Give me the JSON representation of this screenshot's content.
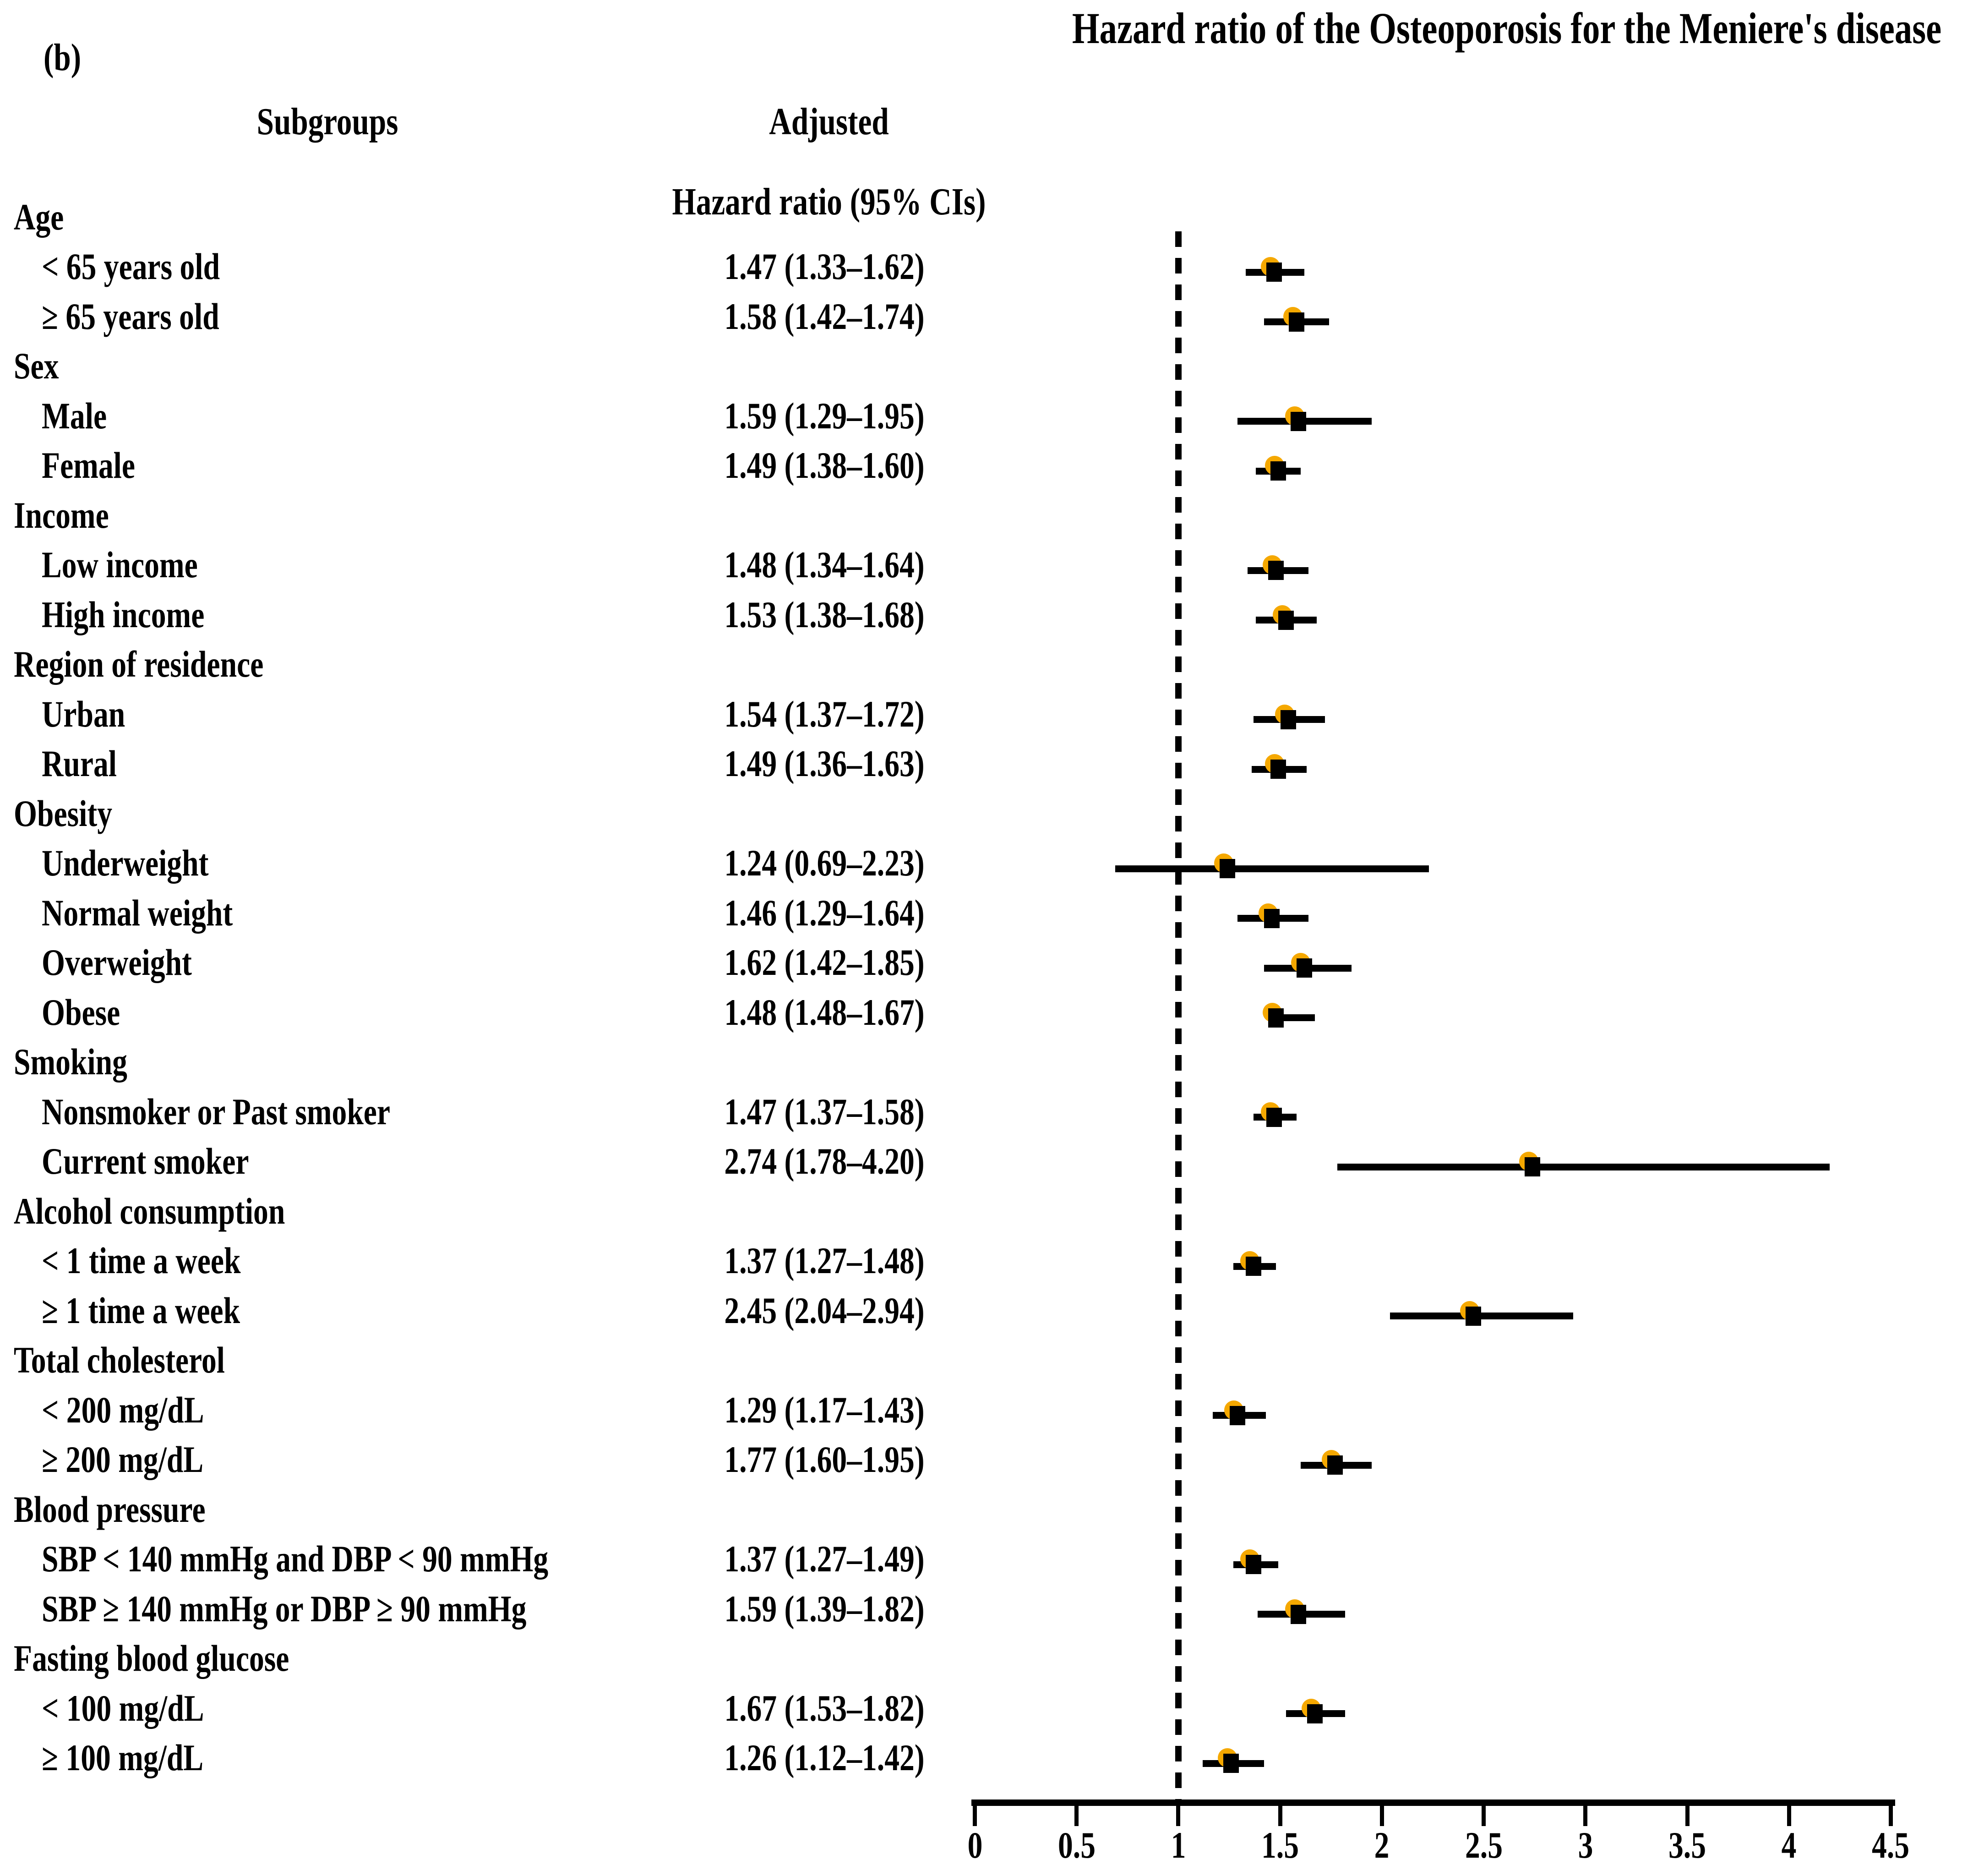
{
  "figure_label": "(b)",
  "title": "Hazard ratio of the Osteoporosis for the Meniere's disease",
  "columns": {
    "subgroups": "Subgroups",
    "adjusted_line1": "Adjusted",
    "adjusted_line2": "Hazard ratio (95% CIs)"
  },
  "colors": {
    "background": "#FFFFFF",
    "text": "#000000",
    "marker": "#000000",
    "ci_line": "#000000",
    "accent": "#F5A800"
  },
  "chart_data": {
    "type": "scatter",
    "variant": "forest-plot",
    "title": "Hazard ratio of the Osteoporosis for the Meniere's disease",
    "xlabel": "",
    "ylabel": "",
    "xlim": [
      0,
      4.5
    ],
    "x_ticks": [
      "0",
      "0.5",
      "1",
      "1.5",
      "2",
      "2.5",
      "3",
      "3.5",
      "4",
      "4.5"
    ],
    "reference_line_x": 1,
    "grid": false,
    "legend": "none",
    "rows": [
      {
        "type": "section",
        "label": "Age"
      },
      {
        "type": "item",
        "label": "< 65 years old",
        "value_text": "1.47 (1.33–1.62)",
        "hr": 1.47,
        "lo": 1.33,
        "hi": 1.62
      },
      {
        "type": "item",
        "label": "≥ 65 years old",
        "value_text": "1.58 (1.42–1.74)",
        "hr": 1.58,
        "lo": 1.42,
        "hi": 1.74
      },
      {
        "type": "section",
        "label": "Sex"
      },
      {
        "type": "item",
        "label": "Male",
        "value_text": "1.59 (1.29–1.95)",
        "hr": 1.59,
        "lo": 1.29,
        "hi": 1.95
      },
      {
        "type": "item",
        "label": "Female",
        "value_text": "1.49 (1.38–1.60)",
        "hr": 1.49,
        "lo": 1.38,
        "hi": 1.6
      },
      {
        "type": "section",
        "label": "Income"
      },
      {
        "type": "item",
        "label": "Low income",
        "value_text": "1.48 (1.34–1.64)",
        "hr": 1.48,
        "lo": 1.34,
        "hi": 1.64
      },
      {
        "type": "item",
        "label": "High income",
        "value_text": "1.53 (1.38–1.68)",
        "hr": 1.53,
        "lo": 1.38,
        "hi": 1.68
      },
      {
        "type": "section",
        "label": "Region of residence"
      },
      {
        "type": "item",
        "label": "Urban",
        "value_text": "1.54 (1.37–1.72)",
        "hr": 1.54,
        "lo": 1.37,
        "hi": 1.72
      },
      {
        "type": "item",
        "label": "Rural",
        "value_text": "1.49 (1.36–1.63)",
        "hr": 1.49,
        "lo": 1.36,
        "hi": 1.63
      },
      {
        "type": "section",
        "label": "Obesity"
      },
      {
        "type": "item",
        "label": "Underweight",
        "value_text": "1.24 (0.69–2.23)",
        "hr": 1.24,
        "lo": 0.69,
        "hi": 2.23
      },
      {
        "type": "item",
        "label": "Normal weight",
        "value_text": "1.46 (1.29–1.64)",
        "hr": 1.46,
        "lo": 1.29,
        "hi": 1.64
      },
      {
        "type": "item",
        "label": "Overweight",
        "value_text": "1.62 (1.42–1.85)",
        "hr": 1.62,
        "lo": 1.42,
        "hi": 1.85
      },
      {
        "type": "item",
        "label": "Obese",
        "value_text": "1.48 (1.48–1.67)",
        "hr": 1.48,
        "lo": 1.48,
        "hi": 1.67
      },
      {
        "type": "section",
        "label": "Smoking"
      },
      {
        "type": "item",
        "label": "Nonsmoker or Past smoker",
        "value_text": "1.47 (1.37–1.58)",
        "hr": 1.47,
        "lo": 1.37,
        "hi": 1.58
      },
      {
        "type": "item",
        "label": "Current smoker",
        "value_text": "2.74 (1.78–4.20)",
        "hr": 2.74,
        "lo": 1.78,
        "hi": 4.2
      },
      {
        "type": "section",
        "label": "Alcohol consumption"
      },
      {
        "type": "item",
        "label": "< 1 time a week",
        "value_text": "1.37 (1.27–1.48)",
        "hr": 1.37,
        "lo": 1.27,
        "hi": 1.48
      },
      {
        "type": "item",
        "label": "≥ 1 time a week",
        "value_text": "2.45 (2.04–2.94)",
        "hr": 2.45,
        "lo": 2.04,
        "hi": 2.94
      },
      {
        "type": "section",
        "label": "Total cholesterol"
      },
      {
        "type": "item",
        "label": "< 200 mg/dL",
        "value_text": "1.29 (1.17–1.43)",
        "hr": 1.29,
        "lo": 1.17,
        "hi": 1.43
      },
      {
        "type": "item",
        "label": "≥ 200 mg/dL",
        "value_text": "1.77 (1.60–1.95)",
        "hr": 1.77,
        "lo": 1.6,
        "hi": 1.95
      },
      {
        "type": "section",
        "label": "Blood pressure"
      },
      {
        "type": "item",
        "label": "SBP < 140 mmHg and DBP < 90 mmHg",
        "value_text": "1.37 (1.27–1.49)",
        "hr": 1.37,
        "lo": 1.27,
        "hi": 1.49
      },
      {
        "type": "item",
        "label": "SBP ≥ 140 mmHg or DBP ≥ 90 mmHg",
        "value_text": "1.59 (1.39–1.82)",
        "hr": 1.59,
        "lo": 1.39,
        "hi": 1.82
      },
      {
        "type": "section",
        "label": "Fasting blood glucose"
      },
      {
        "type": "item",
        "label": "< 100 mg/dL",
        "value_text": "1.67 (1.53–1.82)",
        "hr": 1.67,
        "lo": 1.53,
        "hi": 1.82
      },
      {
        "type": "item",
        "label": "≥ 100 mg/dL",
        "value_text": "1.26 (1.12–1.42)",
        "hr": 1.26,
        "lo": 1.12,
        "hi": 1.42
      }
    ]
  }
}
